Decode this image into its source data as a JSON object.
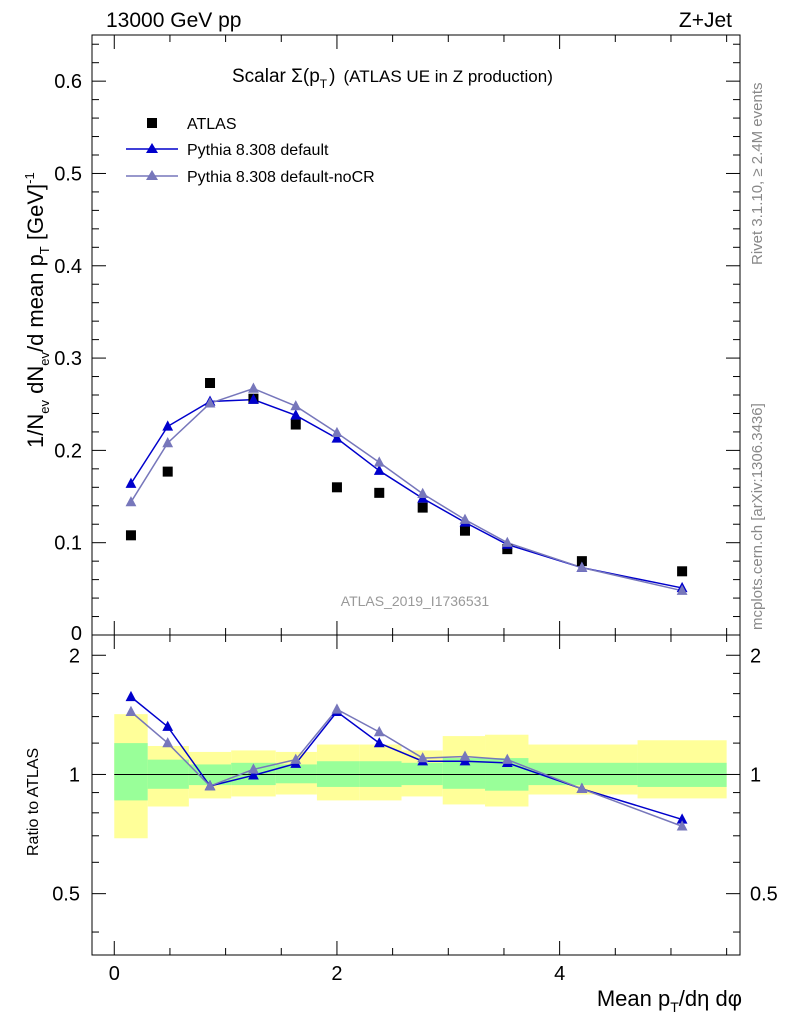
{
  "header": {
    "left": "13000 GeV pp",
    "right": "Z+Jet"
  },
  "side_labels": {
    "rivet": "Rivet 3.1.10, ≥ 2.4M events",
    "mcplots": "mcplots.cern.ch [arXiv:1306.3436]"
  },
  "watermark": "ATLAS_2019_I1736531",
  "chart_data": [
    {
      "type": "scatter",
      "title_main": "Scalar Σ(p",
      "title_sub": "T",
      "title_close": ")",
      "title_suffix": "(ATLAS UE in Z production)",
      "ylabel": "1/N_ev dN_ev/d mean p_T [GeV]^-1",
      "xlim": [
        -0.2,
        5.62
      ],
      "ylim": [
        0,
        0.65
      ],
      "yticks": [
        0.1,
        0.2,
        0.3,
        0.4,
        0.5,
        0.6
      ],
      "ytick_labels": [
        "0.1",
        "0.2",
        "0.3",
        "0.4",
        "0.5",
        "0.6"
      ],
      "bottom_tick_label": "0",
      "legend_position": "top-left",
      "series": [
        {
          "name": "ATLAS",
          "marker": "square",
          "color": "#000000",
          "x": [
            0.15,
            0.48,
            0.86,
            1.25,
            1.63,
            2.0,
            2.38,
            2.77,
            3.15,
            3.53,
            4.2,
            5.1
          ],
          "y": [
            0.108,
            0.177,
            0.273,
            0.256,
            0.228,
            0.16,
            0.154,
            0.138,
            0.113,
            0.093,
            0.08,
            0.069
          ]
        },
        {
          "name": "Pythia 8.308 default",
          "marker": "triangle",
          "color": "#0000cc",
          "x": [
            0.15,
            0.48,
            0.86,
            1.25,
            1.63,
            2.0,
            2.38,
            2.77,
            3.15,
            3.53,
            4.2,
            5.1
          ],
          "y": [
            0.164,
            0.226,
            0.253,
            0.255,
            0.238,
            0.213,
            0.178,
            0.148,
            0.122,
            0.098,
            0.073,
            0.051
          ]
        },
        {
          "name": "Pythia 8.308 default-noCR",
          "marker": "triangle",
          "color": "#7777bb",
          "x": [
            0.15,
            0.48,
            0.86,
            1.25,
            1.63,
            2.0,
            2.38,
            2.77,
            3.15,
            3.53,
            4.2,
            5.1
          ],
          "y": [
            0.144,
            0.208,
            0.251,
            0.267,
            0.248,
            0.219,
            0.187,
            0.153,
            0.125,
            0.1,
            0.073,
            0.048
          ]
        }
      ]
    },
    {
      "type": "line",
      "ylabel": "Ratio to ATLAS",
      "xlabel": "Mean p_T/dη dφ",
      "xlim": [
        -0.2,
        5.62
      ],
      "ylim": [
        0.35,
        2.25
      ],
      "yticks": [
        0.5,
        1,
        2
      ],
      "ytick_labels": [
        "0.5",
        "1",
        "2"
      ],
      "xticks": [
        0,
        2,
        4
      ],
      "xtick_labels": [
        "0",
        "2",
        "4"
      ],
      "reference_line": 1,
      "band_colors": {
        "inner": "#99ff99",
        "outer": "#ffff99"
      },
      "bins": [
        {
          "x0": 0.0,
          "x1": 0.3,
          "outer": [
            0.69,
            1.42
          ],
          "inner": [
            0.86,
            1.2
          ]
        },
        {
          "x0": 0.3,
          "x1": 0.67,
          "outer": [
            0.83,
            1.18
          ],
          "inner": [
            0.92,
            1.09
          ]
        },
        {
          "x0": 0.67,
          "x1": 1.05,
          "outer": [
            0.87,
            1.14
          ],
          "inner": [
            0.94,
            1.06
          ]
        },
        {
          "x0": 1.05,
          "x1": 1.45,
          "outer": [
            0.88,
            1.15
          ],
          "inner": [
            0.94,
            1.07
          ]
        },
        {
          "x0": 1.45,
          "x1": 1.82,
          "outer": [
            0.89,
            1.14
          ],
          "inner": [
            0.95,
            1.06
          ]
        },
        {
          "x0": 1.82,
          "x1": 2.2,
          "outer": [
            0.86,
            1.19
          ],
          "inner": [
            0.93,
            1.08
          ]
        },
        {
          "x0": 2.2,
          "x1": 2.58,
          "outer": [
            0.86,
            1.19
          ],
          "inner": [
            0.93,
            1.08
          ]
        },
        {
          "x0": 2.58,
          "x1": 2.95,
          "outer": [
            0.88,
            1.15
          ],
          "inner": [
            0.94,
            1.07
          ]
        },
        {
          "x0": 2.95,
          "x1": 3.33,
          "outer": [
            0.84,
            1.25
          ],
          "inner": [
            0.92,
            1.1
          ]
        },
        {
          "x0": 3.33,
          "x1": 3.72,
          "outer": [
            0.83,
            1.26
          ],
          "inner": [
            0.91,
            1.1
          ]
        },
        {
          "x0": 3.72,
          "x1": 4.7,
          "outer": [
            0.89,
            1.19
          ],
          "inner": [
            0.94,
            1.07
          ]
        },
        {
          "x0": 4.7,
          "x1": 5.5,
          "outer": [
            0.87,
            1.22
          ],
          "inner": [
            0.93,
            1.07
          ]
        }
      ],
      "series": [
        {
          "name": "Pythia 8.308 default",
          "color": "#0000cc",
          "x": [
            0.15,
            0.48,
            0.86,
            1.25,
            1.63,
            2.0,
            2.38,
            2.77,
            3.15,
            3.53,
            4.2,
            5.1
          ],
          "y": [
            1.57,
            1.32,
            0.935,
            0.995,
            1.065,
            1.44,
            1.2,
            1.08,
            1.08,
            1.07,
            0.92,
            0.77
          ]
        },
        {
          "name": "Pythia 8.308 default-noCR",
          "color": "#7777bb",
          "x": [
            0.15,
            0.48,
            0.86,
            1.25,
            1.63,
            2.0,
            2.38,
            2.77,
            3.15,
            3.53,
            4.2,
            5.1
          ],
          "y": [
            1.44,
            1.2,
            0.935,
            1.03,
            1.09,
            1.46,
            1.28,
            1.1,
            1.11,
            1.09,
            0.92,
            0.74
          ]
        }
      ]
    }
  ]
}
